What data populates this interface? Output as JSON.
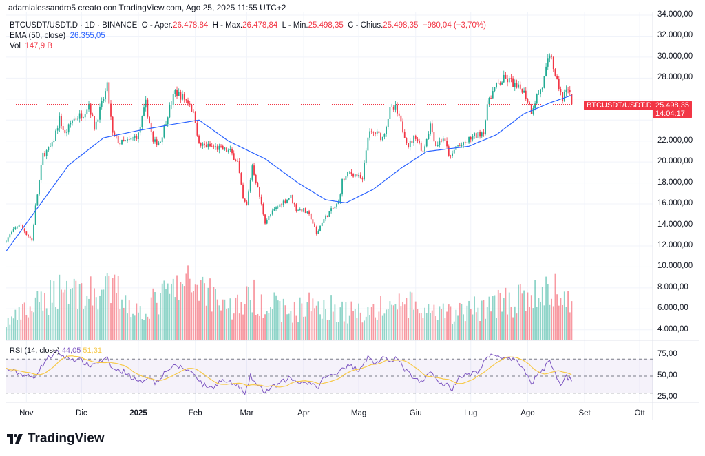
{
  "credit": "adamialessandro5 creato con TradingView.com, Ago 25, 2025 11:55 UTC+2",
  "legend": {
    "symbol": "BTCUSDT/USDT.D · 1D · BINANCE",
    "open_label": "O - Aper.",
    "open": "26.478,84",
    "high_label": "H - Max.",
    "high": "26.478,84",
    "low_label": "L - Min.",
    "low": "25.498,35",
    "close_label": "C - Chius.",
    "close": "25.498,35",
    "change": "−980,04 (−3,70%)",
    "ema_label": "EMA (50, close)",
    "ema_value": "26.355,05",
    "vol_label": "Vol",
    "vol_value": "147,9 B",
    "rsi_label": "RSI (14, close)",
    "rsi_value": "44,05",
    "rsi_ma_value": "51,31"
  },
  "price_tag": {
    "symbol": "BTCUSDT/USDT.D",
    "price": "25.498,35",
    "countdown": "14:04:17"
  },
  "logo_text": "TradingView",
  "colors": {
    "up": "#22ab94",
    "down": "#f23645",
    "ema": "#2962ff",
    "rsi": "#7e57c2",
    "rsi_ma": "#f7c948"
  },
  "chart_data": {
    "type": "candlestick",
    "y_axis_labels": [
      "34.000,00",
      "32.000,00",
      "30.000,00",
      "28.000,00",
      "26.000,00",
      "24.000,00",
      "22.000,00",
      "20.000,00",
      "18.000,00",
      "16.000,00",
      "14.000,00",
      "12.000,00",
      "10.000,00",
      "8.000,00",
      "6.000,00",
      "4.000,00"
    ],
    "rsi_axis_labels": [
      "75,00",
      "50,00",
      "25,00"
    ],
    "x_axis_labels": [
      "Nov",
      "Dic",
      "2025",
      "Feb",
      "Mar",
      "Apr",
      "Mag",
      "Giu",
      "Lug",
      "Ago",
      "Set",
      "Ott"
    ],
    "ylim": [
      3000,
      34000
    ],
    "start": "2024-10-21",
    "end": "2025-08-25",
    "last_candle": {
      "open": 26478.84,
      "high": 26478.84,
      "low": 25498.35,
      "close": 25498.35
    },
    "close_path": [
      [
        "2024-10-21",
        12600
      ],
      [
        "2024-10-28",
        14100
      ],
      [
        "2024-11-04",
        12500
      ],
      [
        "2024-11-06",
        15700
      ],
      [
        "2024-11-10",
        20700
      ],
      [
        "2024-11-12",
        21000
      ],
      [
        "2024-11-15",
        21600
      ],
      [
        "2024-11-19",
        24100
      ],
      [
        "2024-11-22",
        22600
      ],
      [
        "2024-11-26",
        24000
      ],
      [
        "2024-12-02",
        24600
      ],
      [
        "2024-12-05",
        25600
      ],
      [
        "2024-12-08",
        23300
      ],
      [
        "2024-12-12",
        25500
      ],
      [
        "2024-12-15",
        27200
      ],
      [
        "2024-12-18",
        22600
      ],
      [
        "2024-12-22",
        21800
      ],
      [
        "2024-12-27",
        22000
      ],
      [
        "2025-01-01",
        22600
      ],
      [
        "2025-01-05",
        25600
      ],
      [
        "2025-01-09",
        21800
      ],
      [
        "2025-01-13",
        22000
      ],
      [
        "2025-01-17",
        24600
      ],
      [
        "2025-01-21",
        26700
      ],
      [
        "2025-01-25",
        26200
      ],
      [
        "2025-01-29",
        25600
      ],
      [
        "2025-02-01",
        24000
      ],
      [
        "2025-02-03",
        21600
      ],
      [
        "2025-02-08",
        21500
      ],
      [
        "2025-02-14",
        21300
      ],
      [
        "2025-02-20",
        21000
      ],
      [
        "2025-02-24",
        20000
      ],
      [
        "2025-02-27",
        16400
      ],
      [
        "2025-03-01",
        15800
      ],
      [
        "2025-03-04",
        19700
      ],
      [
        "2025-03-08",
        16700
      ],
      [
        "2025-03-11",
        14300
      ],
      [
        "2025-03-15",
        15200
      ],
      [
        "2025-03-20",
        16100
      ],
      [
        "2025-03-25",
        16700
      ],
      [
        "2025-03-28",
        15500
      ],
      [
        "2025-04-01",
        15400
      ],
      [
        "2025-04-05",
        14700
      ],
      [
        "2025-04-08",
        13100
      ],
      [
        "2025-04-11",
        14300
      ],
      [
        "2025-04-15",
        15200
      ],
      [
        "2025-04-20",
        16100
      ],
      [
        "2025-04-22",
        18200
      ],
      [
        "2025-04-26",
        19000
      ],
      [
        "2025-04-30",
        18700
      ],
      [
        "2025-05-03",
        18200
      ],
      [
        "2025-05-06",
        22600
      ],
      [
        "2025-05-10",
        22800
      ],
      [
        "2025-05-14",
        22300
      ],
      [
        "2025-05-18",
        24900
      ],
      [
        "2025-05-21",
        25100
      ],
      [
        "2025-05-24",
        23600
      ],
      [
        "2025-05-28",
        21600
      ],
      [
        "2025-06-01",
        22500
      ],
      [
        "2025-06-05",
        21000
      ],
      [
        "2025-06-09",
        23600
      ],
      [
        "2025-06-12",
        21600
      ],
      [
        "2025-06-16",
        22300
      ],
      [
        "2025-06-20",
        20300
      ],
      [
        "2025-06-23",
        21500
      ],
      [
        "2025-06-27",
        21600
      ],
      [
        "2025-07-01",
        22300
      ],
      [
        "2025-07-05",
        22600
      ],
      [
        "2025-07-08",
        23000
      ],
      [
        "2025-07-11",
        26200
      ],
      [
        "2025-07-15",
        27200
      ],
      [
        "2025-07-19",
        27900
      ],
      [
        "2025-07-23",
        27700
      ],
      [
        "2025-07-26",
        27000
      ],
      [
        "2025-07-29",
        27000
      ],
      [
        "2025-08-01",
        25900
      ],
      [
        "2025-08-03",
        24900
      ],
      [
        "2025-08-06",
        26300
      ],
      [
        "2025-08-09",
        27200
      ],
      [
        "2025-08-12",
        29500
      ],
      [
        "2025-08-14",
        30200
      ],
      [
        "2025-08-16",
        27900
      ],
      [
        "2025-08-19",
        26800
      ],
      [
        "2025-08-20",
        25600
      ],
      [
        "2025-08-22",
        27200
      ],
      [
        "2025-08-24",
        26478.84
      ],
      [
        "2025-08-25",
        25498.35
      ]
    ],
    "ema_path": [
      [
        "2024-10-21",
        11500
      ],
      [
        "2024-11-24",
        19700
      ],
      [
        "2024-12-13",
        22300
      ],
      [
        "2025-01-01",
        23000
      ],
      [
        "2025-01-20",
        23600
      ],
      [
        "2025-02-03",
        24000
      ],
      [
        "2025-02-19",
        22000
      ],
      [
        "2025-03-11",
        20300
      ],
      [
        "2025-03-29",
        18000
      ],
      [
        "2025-04-13",
        16400
      ],
      [
        "2025-04-24",
        16100
      ],
      [
        "2025-05-09",
        17400
      ],
      [
        "2025-05-24",
        19400
      ],
      [
        "2025-06-07",
        21000
      ],
      [
        "2025-06-30",
        21500
      ],
      [
        "2025-07-15",
        22600
      ],
      [
        "2025-07-30",
        24600
      ],
      [
        "2025-08-14",
        25700
      ],
      [
        "2025-08-25",
        26355.05
      ]
    ],
    "volume_path_B": [
      [
        "2024-10-21",
        70
      ],
      [
        "2024-11-10",
        150
      ],
      [
        "2024-11-20",
        220
      ],
      [
        "2024-12-05",
        180
      ],
      [
        "2024-12-20",
        200
      ],
      [
        "2025-01-01",
        110
      ],
      [
        "2025-01-20",
        200
      ],
      [
        "2025-02-03",
        230
      ],
      [
        "2025-02-20",
        130
      ],
      [
        "2025-03-05",
        170
      ],
      [
        "2025-03-25",
        110
      ],
      [
        "2025-04-08",
        150
      ],
      [
        "2025-04-25",
        110
      ],
      [
        "2025-05-10",
        120
      ],
      [
        "2025-05-25",
        150
      ],
      [
        "2025-06-10",
        100
      ],
      [
        "2025-06-25",
        110
      ],
      [
        "2025-07-15",
        150
      ],
      [
        "2025-07-30",
        160
      ],
      [
        "2025-08-14",
        200
      ],
      [
        "2025-08-25",
        147.9
      ]
    ],
    "rsi_path": [
      [
        "2024-10-21",
        58
      ],
      [
        "2024-11-05",
        48
      ],
      [
        "2024-11-12",
        70
      ],
      [
        "2024-11-18",
        78
      ],
      [
        "2024-11-22",
        72
      ],
      [
        "2024-12-01",
        68
      ],
      [
        "2024-12-05",
        62
      ],
      [
        "2024-12-10",
        66
      ],
      [
        "2024-12-15",
        70
      ],
      [
        "2024-12-18",
        58
      ],
      [
        "2024-12-25",
        55
      ],
      [
        "2025-01-01",
        42
      ],
      [
        "2025-01-07",
        50
      ],
      [
        "2025-01-10",
        42
      ],
      [
        "2025-01-17",
        58
      ],
      [
        "2025-01-22",
        62
      ],
      [
        "2025-01-27",
        58
      ],
      [
        "2025-02-01",
        52
      ],
      [
        "2025-02-05",
        40
      ],
      [
        "2025-02-10",
        36
      ],
      [
        "2025-02-15",
        45
      ],
      [
        "2025-02-20",
        42
      ],
      [
        "2025-02-25",
        38
      ],
      [
        "2025-02-28",
        27
      ],
      [
        "2025-03-03",
        50
      ],
      [
        "2025-03-07",
        38
      ],
      [
        "2025-03-11",
        32
      ],
      [
        "2025-03-18",
        40
      ],
      [
        "2025-03-24",
        48
      ],
      [
        "2025-03-28",
        44
      ],
      [
        "2025-04-05",
        42
      ],
      [
        "2025-04-08",
        35
      ],
      [
        "2025-04-12",
        48
      ],
      [
        "2025-04-18",
        52
      ],
      [
        "2025-04-22",
        60
      ],
      [
        "2025-04-26",
        62
      ],
      [
        "2025-05-01",
        58
      ],
      [
        "2025-05-06",
        72
      ],
      [
        "2025-05-10",
        65
      ],
      [
        "2025-05-14",
        70
      ],
      [
        "2025-05-18",
        68
      ],
      [
        "2025-05-21",
        72
      ],
      [
        "2025-05-26",
        58
      ],
      [
        "2025-06-01",
        45
      ],
      [
        "2025-06-05",
        42
      ],
      [
        "2025-06-09",
        58
      ],
      [
        "2025-06-13",
        42
      ],
      [
        "2025-06-18",
        40
      ],
      [
        "2025-06-21",
        35
      ],
      [
        "2025-06-25",
        50
      ],
      [
        "2025-07-01",
        52
      ],
      [
        "2025-07-05",
        55
      ],
      [
        "2025-07-10",
        72
      ],
      [
        "2025-07-15",
        75
      ],
      [
        "2025-07-20",
        70
      ],
      [
        "2025-07-25",
        68
      ],
      [
        "2025-07-30",
        60
      ],
      [
        "2025-08-03",
        40
      ],
      [
        "2025-08-06",
        52
      ],
      [
        "2025-08-10",
        58
      ],
      [
        "2025-08-13",
        70
      ],
      [
        "2025-08-16",
        52
      ],
      [
        "2025-08-19",
        42
      ],
      [
        "2025-08-22",
        50
      ],
      [
        "2025-08-25",
        44.05
      ]
    ],
    "rsi_bands": [
      70,
      50,
      30
    ]
  }
}
